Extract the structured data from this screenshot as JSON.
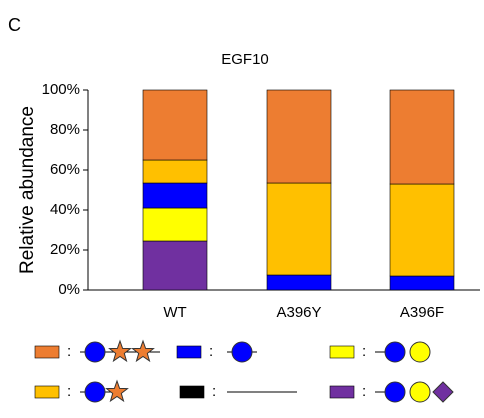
{
  "panel_label": "C",
  "chart_data": {
    "type": "stacked_bar",
    "title": "EGF10",
    "ylabel": "Relative abundance",
    "categories": [
      "WT",
      "A396Y",
      "A396F"
    ],
    "series": [
      {
        "color": "#ed7d31",
        "values": [
          35,
          46.5,
          47
        ]
      },
      {
        "color": "#0000ff",
        "values": [
          12.5,
          7.5,
          7
        ]
      },
      {
        "color": "#ffff00",
        "values": [
          16.5,
          0,
          0
        ]
      },
      {
        "color": "#ffc000",
        "values": [
          11.5,
          46,
          46
        ]
      },
      {
        "color": "#000000",
        "values": [
          0,
          0,
          0
        ]
      },
      {
        "color": "#7030a0",
        "values": [
          24.5,
          0,
          0
        ]
      }
    ],
    "ylim": [
      0,
      100
    ],
    "yticks": [
      {
        "value": 0,
        "label": "0%"
      },
      {
        "value": 20,
        "label": "20%"
      },
      {
        "value": 40,
        "label": "40%"
      },
      {
        "value": 60,
        "label": "60%"
      },
      {
        "value": 80,
        "label": "80%"
      },
      {
        "value": 100,
        "label": "100%"
      }
    ],
    "legend_separator": ":"
  }
}
